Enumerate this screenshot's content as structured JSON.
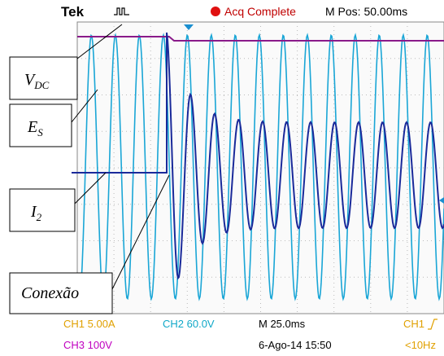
{
  "header": {
    "brand": "Tek",
    "status": "Acq Complete",
    "position": "M Pos: 50.00ms"
  },
  "footer": {
    "ch1": "CH1  5.00A",
    "ch2": "CH2  60.0V",
    "timebase": "M 25.0ms",
    "trigger_source": "CH1",
    "ch3": "CH3  100V",
    "date": "6-Ago-14 15:50",
    "frequency": "<10Hz"
  },
  "labels": {
    "vdc": {
      "main": "V",
      "sub": "DC"
    },
    "es": {
      "main": "E",
      "sub": "S"
    },
    "i2": {
      "main": "I",
      "sub": "2"
    },
    "connection": "Conexão"
  }
}
